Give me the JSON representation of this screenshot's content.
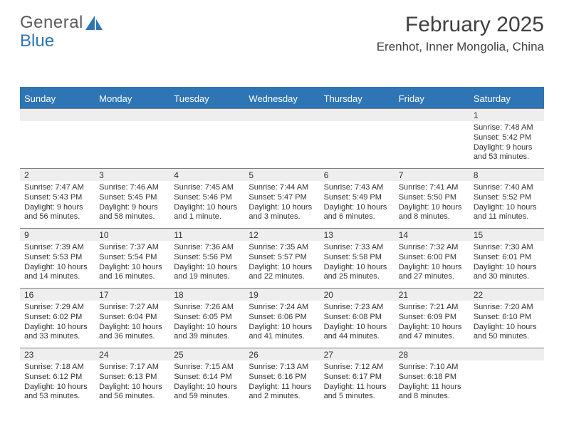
{
  "logo": {
    "text1": "General",
    "text2": "Blue",
    "text2_color": "#2e75b6",
    "sail_color": "#2e75b6"
  },
  "title": "February 2025",
  "location": "Erenhot, Inner Mongolia, China",
  "colors": {
    "accent": "#2e75b6",
    "header_bg": "#2e75b6",
    "header_text": "#ffffff",
    "datebg": "#eeeeee",
    "rule": "#7f7f7f",
    "text": "#333333"
  },
  "day_names": [
    "Sunday",
    "Monday",
    "Tuesday",
    "Wednesday",
    "Thursday",
    "Friday",
    "Saturday"
  ],
  "weeks": [
    [
      {
        "blank": true
      },
      {
        "blank": true
      },
      {
        "blank": true
      },
      {
        "blank": true
      },
      {
        "blank": true
      },
      {
        "blank": true
      },
      {
        "date": "1",
        "sunrise": "Sunrise: 7:48 AM",
        "sunset": "Sunset: 5:42 PM",
        "daylight": "Daylight: 9 hours and 53 minutes."
      }
    ],
    [
      {
        "date": "2",
        "sunrise": "Sunrise: 7:47 AM",
        "sunset": "Sunset: 5:43 PM",
        "daylight": "Daylight: 9 hours and 56 minutes."
      },
      {
        "date": "3",
        "sunrise": "Sunrise: 7:46 AM",
        "sunset": "Sunset: 5:45 PM",
        "daylight": "Daylight: 9 hours and 58 minutes."
      },
      {
        "date": "4",
        "sunrise": "Sunrise: 7:45 AM",
        "sunset": "Sunset: 5:46 PM",
        "daylight": "Daylight: 10 hours and 1 minute."
      },
      {
        "date": "5",
        "sunrise": "Sunrise: 7:44 AM",
        "sunset": "Sunset: 5:47 PM",
        "daylight": "Daylight: 10 hours and 3 minutes."
      },
      {
        "date": "6",
        "sunrise": "Sunrise: 7:43 AM",
        "sunset": "Sunset: 5:49 PM",
        "daylight": "Daylight: 10 hours and 6 minutes."
      },
      {
        "date": "7",
        "sunrise": "Sunrise: 7:41 AM",
        "sunset": "Sunset: 5:50 PM",
        "daylight": "Daylight: 10 hours and 8 minutes."
      },
      {
        "date": "8",
        "sunrise": "Sunrise: 7:40 AM",
        "sunset": "Sunset: 5:52 PM",
        "daylight": "Daylight: 10 hours and 11 minutes."
      }
    ],
    [
      {
        "date": "9",
        "sunrise": "Sunrise: 7:39 AM",
        "sunset": "Sunset: 5:53 PM",
        "daylight": "Daylight: 10 hours and 14 minutes."
      },
      {
        "date": "10",
        "sunrise": "Sunrise: 7:37 AM",
        "sunset": "Sunset: 5:54 PM",
        "daylight": "Daylight: 10 hours and 16 minutes."
      },
      {
        "date": "11",
        "sunrise": "Sunrise: 7:36 AM",
        "sunset": "Sunset: 5:56 PM",
        "daylight": "Daylight: 10 hours and 19 minutes."
      },
      {
        "date": "12",
        "sunrise": "Sunrise: 7:35 AM",
        "sunset": "Sunset: 5:57 PM",
        "daylight": "Daylight: 10 hours and 22 minutes."
      },
      {
        "date": "13",
        "sunrise": "Sunrise: 7:33 AM",
        "sunset": "Sunset: 5:58 PM",
        "daylight": "Daylight: 10 hours and 25 minutes."
      },
      {
        "date": "14",
        "sunrise": "Sunrise: 7:32 AM",
        "sunset": "Sunset: 6:00 PM",
        "daylight": "Daylight: 10 hours and 27 minutes."
      },
      {
        "date": "15",
        "sunrise": "Sunrise: 7:30 AM",
        "sunset": "Sunset: 6:01 PM",
        "daylight": "Daylight: 10 hours and 30 minutes."
      }
    ],
    [
      {
        "date": "16",
        "sunrise": "Sunrise: 7:29 AM",
        "sunset": "Sunset: 6:02 PM",
        "daylight": "Daylight: 10 hours and 33 minutes."
      },
      {
        "date": "17",
        "sunrise": "Sunrise: 7:27 AM",
        "sunset": "Sunset: 6:04 PM",
        "daylight": "Daylight: 10 hours and 36 minutes."
      },
      {
        "date": "18",
        "sunrise": "Sunrise: 7:26 AM",
        "sunset": "Sunset: 6:05 PM",
        "daylight": "Daylight: 10 hours and 39 minutes."
      },
      {
        "date": "19",
        "sunrise": "Sunrise: 7:24 AM",
        "sunset": "Sunset: 6:06 PM",
        "daylight": "Daylight: 10 hours and 41 minutes."
      },
      {
        "date": "20",
        "sunrise": "Sunrise: 7:23 AM",
        "sunset": "Sunset: 6:08 PM",
        "daylight": "Daylight: 10 hours and 44 minutes."
      },
      {
        "date": "21",
        "sunrise": "Sunrise: 7:21 AM",
        "sunset": "Sunset: 6:09 PM",
        "daylight": "Daylight: 10 hours and 47 minutes."
      },
      {
        "date": "22",
        "sunrise": "Sunrise: 7:20 AM",
        "sunset": "Sunset: 6:10 PM",
        "daylight": "Daylight: 10 hours and 50 minutes."
      }
    ],
    [
      {
        "date": "23",
        "sunrise": "Sunrise: 7:18 AM",
        "sunset": "Sunset: 6:12 PM",
        "daylight": "Daylight: 10 hours and 53 minutes."
      },
      {
        "date": "24",
        "sunrise": "Sunrise: 7:17 AM",
        "sunset": "Sunset: 6:13 PM",
        "daylight": "Daylight: 10 hours and 56 minutes."
      },
      {
        "date": "25",
        "sunrise": "Sunrise: 7:15 AM",
        "sunset": "Sunset: 6:14 PM",
        "daylight": "Daylight: 10 hours and 59 minutes."
      },
      {
        "date": "26",
        "sunrise": "Sunrise: 7:13 AM",
        "sunset": "Sunset: 6:16 PM",
        "daylight": "Daylight: 11 hours and 2 minutes."
      },
      {
        "date": "27",
        "sunrise": "Sunrise: 7:12 AM",
        "sunset": "Sunset: 6:17 PM",
        "daylight": "Daylight: 11 hours and 5 minutes."
      },
      {
        "date": "28",
        "sunrise": "Sunrise: 7:10 AM",
        "sunset": "Sunset: 6:18 PM",
        "daylight": "Daylight: 11 hours and 8 minutes."
      },
      {
        "blank": true
      }
    ]
  ]
}
